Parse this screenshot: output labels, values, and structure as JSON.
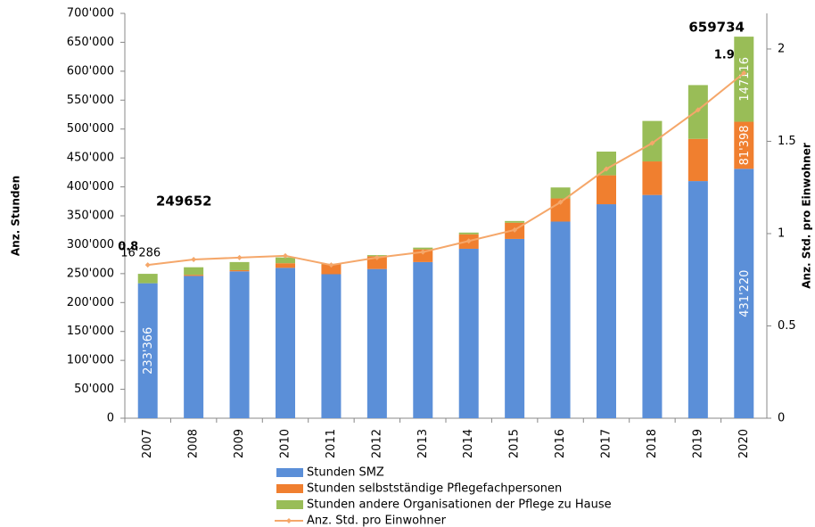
{
  "chart_data": {
    "type": "bar",
    "stacked": true,
    "categories": [
      "2007",
      "2008",
      "2009",
      "2010",
      "2011",
      "2012",
      "2013",
      "2014",
      "2015",
      "2016",
      "2017",
      "2018",
      "2019",
      "2020"
    ],
    "series": [
      {
        "name": "Stunden SMZ",
        "color": "#5b8fd8",
        "values": [
          233366,
          246000,
          254000,
          260000,
          249000,
          258000,
          270000,
          293000,
          310000,
          340000,
          370000,
          386000,
          410000,
          431220
        ],
        "value_labels": [
          "233'366",
          null,
          null,
          null,
          null,
          null,
          null,
          null,
          null,
          null,
          null,
          null,
          null,
          "431'220"
        ]
      },
      {
        "name": "Stunden selbstständige Pflegefachpersonen",
        "color": "#f07f2f",
        "values": [
          0,
          2000,
          2000,
          8000,
          17000,
          22000,
          22000,
          25000,
          28000,
          40000,
          50000,
          58000,
          73000,
          81398
        ],
        "value_labels": [
          null,
          null,
          null,
          null,
          null,
          null,
          null,
          null,
          null,
          null,
          null,
          null,
          null,
          "81'398"
        ]
      },
      {
        "name": "Stunden andere Organisationen der Pflege zu Hause",
        "color": "#99bd57",
        "values": [
          16286,
          13000,
          14000,
          10000,
          1000,
          2000,
          3000,
          3000,
          3000,
          19000,
          41000,
          70000,
          93000,
          147116
        ],
        "value_labels": [
          "16'286",
          null,
          null,
          null,
          null,
          null,
          null,
          null,
          null,
          null,
          null,
          null,
          null,
          "147116"
        ]
      },
      {
        "name": "Anz. Std. pro Einwohner",
        "color": "#f5a76a",
        "type": "line",
        "axis": "y2",
        "values": [
          0.83,
          0.86,
          0.87,
          0.88,
          0.83,
          0.87,
          0.9,
          0.96,
          1.02,
          1.17,
          1.35,
          1.49,
          1.67,
          1.87
        ],
        "value_labels": [
          "0.8",
          null,
          null,
          null,
          null,
          null,
          null,
          null,
          null,
          null,
          null,
          null,
          null,
          "1.9"
        ]
      }
    ],
    "annotations": [
      {
        "text": "249652"
      },
      {
        "text": "659734"
      }
    ],
    "y_label": "Anz. Stunden",
    "y2_label": "Anz. Std. pro Einwohner",
    "ylim": [
      0,
      700000
    ],
    "yticks": [
      0,
      {
        "value": 50000,
        "label": "50'000"
      },
      {
        "value": 100000,
        "label": "100'000"
      },
      {
        "value": 150000,
        "label": "150'000"
      },
      {
        "value": 200000,
        "label": "200'000"
      },
      {
        "value": 250000,
        "label": "250'000"
      },
      {
        "value": 300000,
        "label": "300'000"
      },
      {
        "value": 350000,
        "label": "350'000"
      },
      {
        "value": 400000,
        "label": "400'000"
      },
      {
        "value": 450000,
        "label": "450'000"
      },
      {
        "value": 500000,
        "label": "500'000"
      },
      {
        "value": 550000,
        "label": "550'000"
      },
      {
        "value": 600000,
        "label": "600'000"
      },
      {
        "value": 650000,
        "label": "650'000"
      },
      {
        "value": 700000,
        "label": "700'000"
      }
    ],
    "y2lim": [
      0,
      2.193
    ],
    "y2ticks": [
      0,
      0.5,
      1,
      1.5,
      2
    ],
    "grid": false,
    "legend": "bottom"
  }
}
